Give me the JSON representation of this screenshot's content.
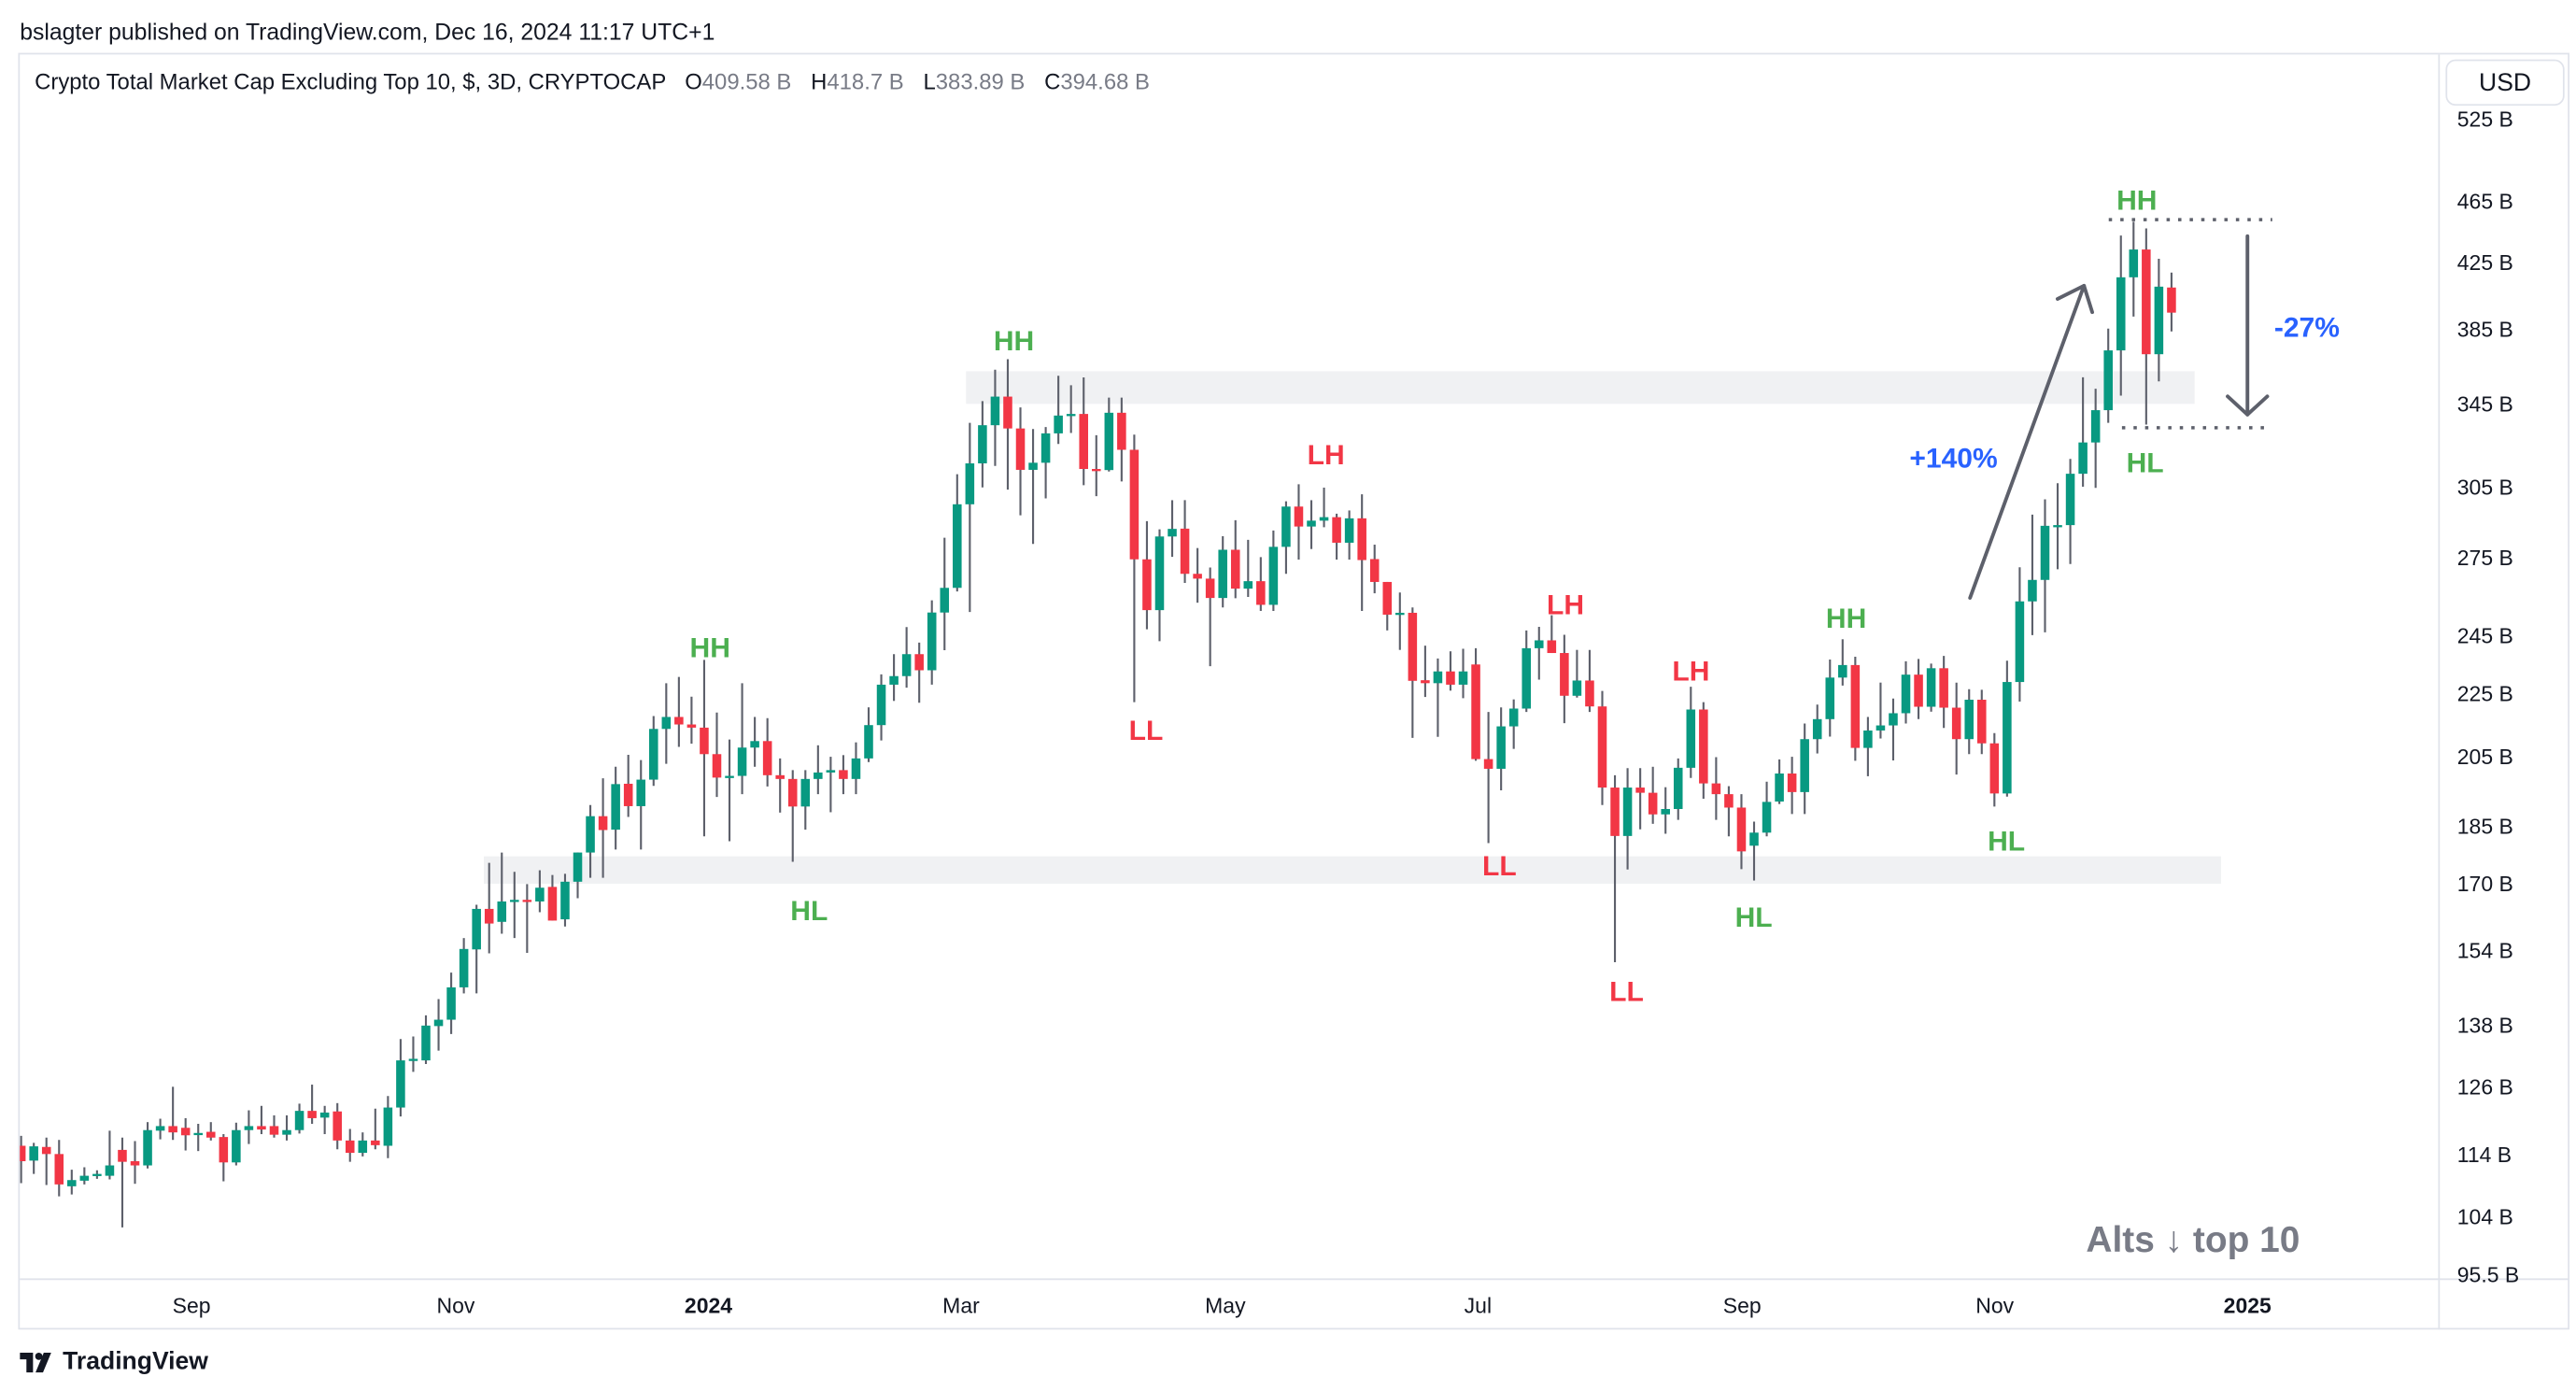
{
  "header": {
    "published": "bslagter published on TradingView.com, Dec 16, 2024 11:17 UTC+1"
  },
  "legend": {
    "title": "Crypto Total Market Cap Excluding Top 10, $, 3D, CRYPTOCAP",
    "open_key": "O",
    "open": "409.58 B",
    "high_key": "H",
    "high": "418.7 B",
    "low_key": "L",
    "low": "383.89 B",
    "close_key": "C",
    "close": "394.68 B"
  },
  "currency_button": "USD",
  "watermark": "Alts ↓ top 10",
  "brand": "TradingView",
  "colors": {
    "up": "#089981",
    "down": "#f23645",
    "wick": "#5d606b",
    "label_green": "#4caf50",
    "label_red": "#f23645",
    "label_blue": "#2962ff",
    "band": "#f0f1f3",
    "arrow": "#5d606b"
  },
  "annotations": {
    "hh1": "HH",
    "hl1": "HL",
    "hh2": "HH",
    "ll1": "LL",
    "lh1": "LH",
    "lh2": "LH",
    "ll2": "LL",
    "lh3": "LH",
    "ll3": "LL",
    "hh3": "HH",
    "hl2": "HL",
    "hl3": "HL",
    "hh4": "HH",
    "hl4": "HL",
    "gain": "+140%",
    "drop": "-27%"
  },
  "chart_data": {
    "type": "candlestick",
    "title": "Crypto Total Market Cap Excluding Top 10, $, 3D, CRYPTOCAP",
    "interval": "3D",
    "y_scale": "log",
    "ylabel_unit": "USD",
    "yticks": [
      "525 B",
      "465 B",
      "425 B",
      "385 B",
      "345 B",
      "305 B",
      "275 B",
      "245 B",
      "225 B",
      "205 B",
      "185 B",
      "170 B",
      "154 B",
      "138 B",
      "126 B",
      "114 B",
      "104 B",
      "95.5 B"
    ],
    "xticks": [
      "Sep",
      "Nov",
      "2024",
      "Mar",
      "May",
      "Jul",
      "Sep",
      "Nov",
      "2025"
    ],
    "ylim": [
      95.5,
      525
    ],
    "grid": false,
    "zones": [
      {
        "low": 345,
        "high": 362
      },
      {
        "low": 170,
        "high": 177
      }
    ],
    "ohlc_columns": [
      "open",
      "high",
      "low",
      "close"
    ],
    "ohlc": [
      [
        115.5,
        117.2,
        109.3,
        112.9
      ],
      [
        113,
        116,
        110.8,
        115.4
      ],
      [
        115.3,
        116.9,
        109,
        114.1
      ],
      [
        114.1,
        116.5,
        107.2,
        109.1
      ],
      [
        108.8,
        111.5,
        107.5,
        109.8
      ],
      [
        109.7,
        111.9,
        109.1,
        110.5
      ],
      [
        110.6,
        111.4,
        110,
        110.8
      ],
      [
        110.5,
        118.1,
        109.9,
        112.2
      ],
      [
        114.8,
        116.9,
        102.4,
        112.8
      ],
      [
        112.9,
        116.3,
        109.2,
        112.2
      ],
      [
        112.2,
        119.6,
        111.7,
        118.2
      ],
      [
        118.1,
        120.2,
        116.6,
        118.9
      ],
      [
        118.9,
        126,
        116.5,
        117.8
      ],
      [
        118.6,
        120.3,
        114.7,
        117.3
      ],
      [
        117.4,
        119.3,
        114.6,
        117.7
      ],
      [
        117.9,
        119.6,
        116.4,
        116.9
      ],
      [
        117,
        117.5,
        109.6,
        112.7
      ],
      [
        112.7,
        119.5,
        112.2,
        118.2
      ],
      [
        118.2,
        121.7,
        115.8,
        118.9
      ],
      [
        118.9,
        122.5,
        117.5,
        118.3
      ],
      [
        118.9,
        120.8,
        116.9,
        117.4
      ],
      [
        117.4,
        120.8,
        116.4,
        118.2
      ],
      [
        118.2,
        122.9,
        117.6,
        121.6
      ],
      [
        121.6,
        126.4,
        119.3,
        120.3
      ],
      [
        120.4,
        122.5,
        117.5,
        121.3
      ],
      [
        121.5,
        123,
        114.9,
        116.4
      ],
      [
        116.4,
        118.4,
        112.8,
        114.3
      ],
      [
        114.3,
        117.8,
        113.7,
        116.4
      ],
      [
        116.4,
        122,
        114.9,
        115.6
      ],
      [
        115.5,
        124.3,
        113.4,
        122.2
      ],
      [
        122.2,
        135.2,
        120.6,
        131
      ],
      [
        131,
        135.7,
        128.8,
        131.3
      ],
      [
        131,
        140,
        130.3,
        137.9
      ],
      [
        137.8,
        143.4,
        132.9,
        139.1
      ],
      [
        139.1,
        149.1,
        136.2,
        145.9
      ],
      [
        145.9,
        156.9,
        144.6,
        154.4
      ],
      [
        154.3,
        164.8,
        144.6,
        163.8
      ],
      [
        163.8,
        175.3,
        153.4,
        160.3
      ],
      [
        160.7,
        178,
        157.9,
        165.6
      ],
      [
        165.6,
        173,
        156.9,
        166
      ],
      [
        166,
        169.9,
        153.5,
        165.6
      ],
      [
        165.6,
        173.4,
        163,
        169
      ],
      [
        169.2,
        172.2,
        161,
        161
      ],
      [
        161.3,
        172.5,
        159.6,
        170.5
      ],
      [
        170.5,
        178,
        166.4,
        178
      ],
      [
        178,
        190.9,
        171.5,
        187.8
      ],
      [
        187.8,
        198.6,
        171.5,
        184
      ],
      [
        184.1,
        202,
        178.8,
        196.9
      ],
      [
        197,
        205.6,
        187.6,
        190.6
      ],
      [
        190.6,
        204,
        178.8,
        198.2
      ],
      [
        198.2,
        217.7,
        196.4,
        213.6
      ],
      [
        213.6,
        228.5,
        202.9,
        217.4
      ],
      [
        217.4,
        230.6,
        208,
        215
      ],
      [
        215,
        224,
        209,
        214
      ],
      [
        214,
        236.5,
        182.3,
        205.8
      ],
      [
        205.8,
        218.8,
        193.2,
        198.8
      ],
      [
        198.9,
        210.3,
        181,
        199.3
      ],
      [
        199.3,
        228.5,
        194,
        207.8
      ],
      [
        207.8,
        217.4,
        202,
        209.8
      ],
      [
        209.8,
        217,
        196.2,
        199.5
      ],
      [
        199.5,
        204.5,
        188.8,
        198.4
      ],
      [
        198.4,
        201,
        175.6,
        190.5
      ],
      [
        190.5,
        201,
        184.1,
        198.4
      ],
      [
        198.4,
        208.5,
        194,
        200.3
      ],
      [
        200.3,
        205,
        188.9,
        201
      ],
      [
        201,
        205.5,
        194,
        198.4
      ],
      [
        198.4,
        209.4,
        194,
        204.5
      ],
      [
        204.5,
        220.5,
        203.4,
        214.8
      ],
      [
        214.8,
        231.5,
        210,
        228
      ],
      [
        228,
        238.5,
        222.6,
        230.9
      ],
      [
        230.9,
        248.2,
        227,
        238.5
      ],
      [
        238.5,
        242.6,
        222,
        232.9
      ],
      [
        232.9,
        258.2,
        228,
        253.6
      ],
      [
        253.6,
        283.2,
        239.9,
        263
      ],
      [
        263,
        311,
        261.6,
        297.5
      ],
      [
        297.5,
        335.5,
        253.8,
        316
      ],
      [
        316,
        346.4,
        305,
        334.3
      ],
      [
        334.3,
        362.8,
        314.8,
        348.7
      ],
      [
        348.7,
        368.5,
        304,
        332.7
      ],
      [
        332.7,
        343.2,
        292.7,
        313
      ],
      [
        313,
        332.4,
        280.6,
        316.3
      ],
      [
        316.3,
        333.4,
        300.1,
        330.3
      ],
      [
        330.3,
        359.6,
        325.2,
        339.1
      ],
      [
        339.1,
        354.6,
        330.5,
        339.9
      ],
      [
        339.9,
        358.7,
        306,
        313.4
      ],
      [
        313.4,
        329.4,
        301.1,
        312.9
      ],
      [
        312.9,
        348.2,
        312.2,
        340.5
      ],
      [
        340.5,
        348.2,
        307.7,
        322.4
      ],
      [
        322.4,
        329.7,
        222.2,
        274.3
      ],
      [
        274.3,
        290.2,
        247.4,
        254.5
      ],
      [
        254.5,
        286.7,
        243.1,
        283.7
      ],
      [
        283.7,
        299.3,
        275.3,
        286.9
      ],
      [
        287,
        299.3,
        264.9,
        268.5
      ],
      [
        268.5,
        278.9,
        257.3,
        266.6
      ],
      [
        266.6,
        271,
        234.3,
        259.1
      ],
      [
        259.1,
        283.8,
        255.5,
        278.2
      ],
      [
        278.2,
        290.6,
        259,
        262.7
      ],
      [
        262.7,
        282.3,
        259.5,
        265.6
      ],
      [
        265.6,
        275.2,
        254.2,
        256.5
      ],
      [
        256.5,
        286.2,
        254.2,
        279.4
      ],
      [
        279.4,
        298.8,
        268.5,
        296.5
      ],
      [
        296.5,
        306.4,
        274.2,
        287.9
      ],
      [
        287.9,
        299.3,
        278.5,
        290.4
      ],
      [
        290.4,
        304.9,
        287.6,
        291.9
      ],
      [
        291.9,
        293.4,
        274.2,
        281.1
      ],
      [
        281.1,
        294.8,
        274.2,
        291.4
      ],
      [
        291.4,
        301.9,
        254.2,
        274
      ],
      [
        274.4,
        280.3,
        260.9,
        265.3
      ],
      [
        265.3,
        265.3,
        247,
        252.8
      ],
      [
        252.8,
        261.2,
        240,
        253.5
      ],
      [
        253.5,
        255.5,
        210.8,
        229.3
      ],
      [
        229.5,
        241.5,
        223.9,
        228.5
      ],
      [
        228.5,
        237,
        211.1,
        232.5
      ],
      [
        232.5,
        239.5,
        226,
        228
      ],
      [
        228,
        240.4,
        223.5,
        232.5
      ],
      [
        234.9,
        240.6,
        203.8,
        204.3
      ],
      [
        204.3,
        219,
        180.5,
        201.4
      ],
      [
        201.4,
        220.5,
        195.1,
        214.4
      ],
      [
        214.4,
        223.1,
        207.4,
        220.1
      ],
      [
        220.1,
        247,
        219,
        240.6
      ],
      [
        240.6,
        248.3,
        229.7,
        243.4
      ],
      [
        243.4,
        252.6,
        238.9,
        238.9
      ],
      [
        238.9,
        245.4,
        215.4,
        224.3
      ],
      [
        224.3,
        240,
        223.7,
        229.4
      ],
      [
        229.4,
        240,
        219,
        220.8
      ],
      [
        220.8,
        225.9,
        190.9,
        195.9
      ],
      [
        195.9,
        199.5,
        151.4,
        182.4
      ],
      [
        182.4,
        201.6,
        173.6,
        195.9
      ],
      [
        195.9,
        201.6,
        184.2,
        194.4
      ],
      [
        194.4,
        202,
        185.7,
        188.3
      ],
      [
        188.3,
        196,
        183,
        189.8
      ],
      [
        189.8,
        204.5,
        186.8,
        201.7
      ],
      [
        201.7,
        227.3,
        198.7,
        219.8
      ],
      [
        219.8,
        222.2,
        192.7,
        197.1
      ],
      [
        197.1,
        204.9,
        186.8,
        194
      ],
      [
        194,
        196.3,
        182.3,
        190.2
      ],
      [
        190.2,
        194,
        173.7,
        178.3
      ],
      [
        179.8,
        186.3,
        170.8,
        183.3
      ],
      [
        183.3,
        197.6,
        182.3,
        191.8
      ],
      [
        191.9,
        204.2,
        191.2,
        200
      ],
      [
        200,
        205,
        188.4,
        194.6
      ],
      [
        194.6,
        215.3,
        188.4,
        210.4
      ],
      [
        210.4,
        221.4,
        206,
        216.7
      ],
      [
        216.7,
        236.6,
        211.2,
        230.4
      ],
      [
        230.4,
        243.8,
        227.7,
        234.7
      ],
      [
        234.7,
        237.6,
        203.8,
        207.7
      ],
      [
        207.7,
        217.4,
        199.2,
        213.1
      ],
      [
        213.1,
        228.7,
        210.6,
        214.7
      ],
      [
        214.7,
        223.4,
        203.9,
        218.6
      ],
      [
        218.6,
        236,
        215.3,
        231.4
      ],
      [
        231.4,
        236.8,
        216.7,
        220.7
      ],
      [
        220.7,
        235.2,
        219.1,
        233.6
      ],
      [
        233.6,
        237.9,
        213.9,
        220.4
      ],
      [
        220.4,
        228.7,
        199.7,
        210.4
      ],
      [
        210.4,
        226.5,
        205.8,
        223
      ],
      [
        223,
        226.3,
        205.8,
        209.1
      ],
      [
        209.1,
        212.3,
        190.5,
        194.2
      ],
      [
        194.2,
        236.2,
        193.3,
        228.9
      ],
      [
        228.9,
        271.1,
        222.4,
        257.8
      ],
      [
        257.8,
        293,
        245.3,
        266.1
      ],
      [
        266.1,
        299.7,
        246.3,
        288.2
      ],
      [
        288.2,
        306.9,
        270.3,
        288.5
      ],
      [
        288.5,
        318.1,
        272.4,
        311.2
      ],
      [
        311.2,
        358.8,
        305.3,
        325.9
      ],
      [
        325.9,
        352.8,
        304.8,
        341.8
      ],
      [
        341.8,
        385.5,
        335.5,
        373.3
      ],
      [
        373.3,
        442.2,
        349.2,
        415.8
      ],
      [
        415.8,
        451.3,
        392.4,
        433.2
      ],
      [
        433.2,
        446.9,
        334.6,
        371.2
      ],
      [
        371.2,
        427.3,
        356.6,
        410.1
      ],
      [
        409.58,
        418.7,
        383.89,
        394.68
      ]
    ]
  }
}
